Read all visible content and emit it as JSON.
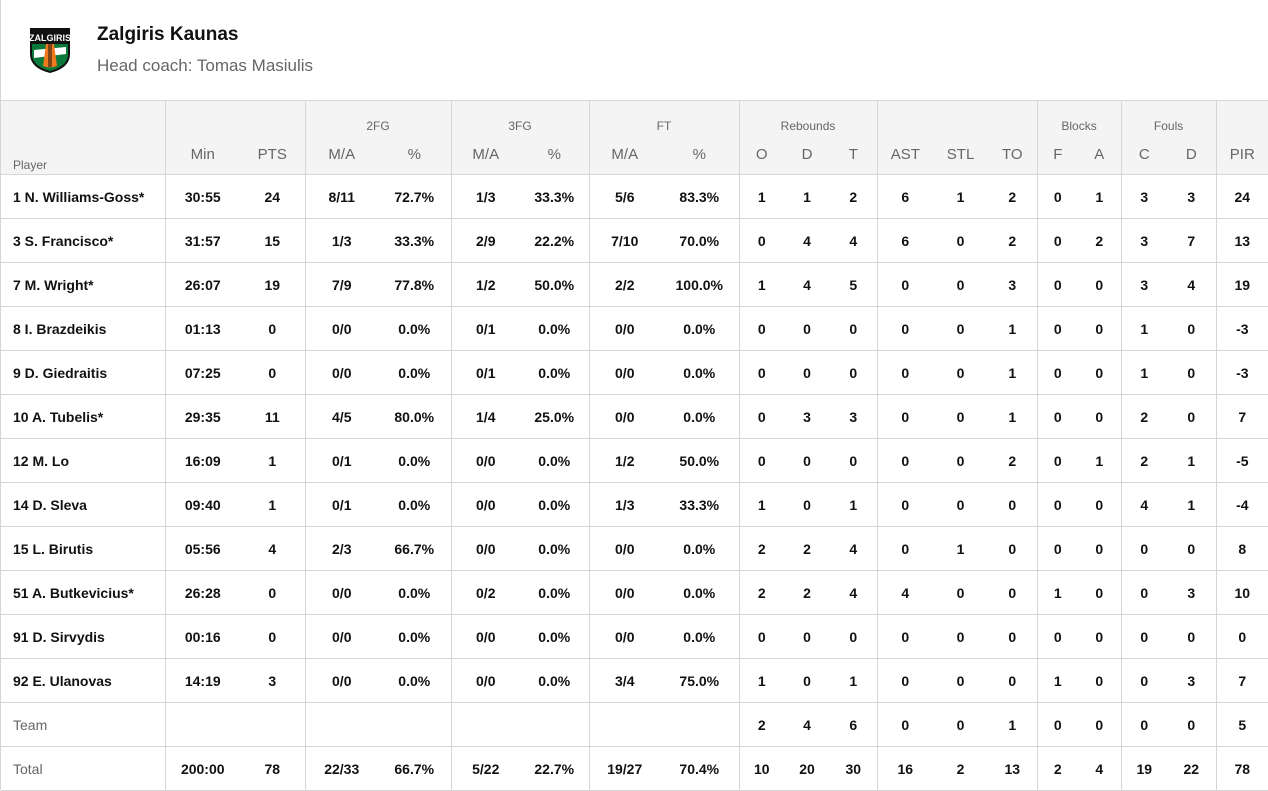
{
  "team": {
    "name": "Zalgiris Kaunas",
    "coach": "Head coach: Tomas Masiulis",
    "logo_text": "ZALGIRIS",
    "colors": {
      "green": "#0a7a3a",
      "orange": "#f07a1e",
      "black": "#111111"
    }
  },
  "groups": [
    "",
    "",
    "2FG",
    "3FG",
    "FT",
    "Rebounds",
    "",
    "Blocks",
    "Fouls",
    ""
  ],
  "columns": [
    "Player",
    "Min",
    "PTS",
    "M/A",
    "%",
    "M/A",
    "%",
    "M/A",
    "%",
    "O",
    "D",
    "T",
    "AST",
    "STL",
    "TO",
    "F",
    "A",
    "C",
    "D",
    "PIR"
  ],
  "rows": [
    [
      "1 N. Williams-Goss*",
      "30:55",
      "24",
      "8/11",
      "72.7%",
      "1/3",
      "33.3%",
      "5/6",
      "83.3%",
      "1",
      "1",
      "2",
      "6",
      "1",
      "2",
      "0",
      "1",
      "3",
      "3",
      "24"
    ],
    [
      "3 S. Francisco*",
      "31:57",
      "15",
      "1/3",
      "33.3%",
      "2/9",
      "22.2%",
      "7/10",
      "70.0%",
      "0",
      "4",
      "4",
      "6",
      "0",
      "2",
      "0",
      "2",
      "3",
      "7",
      "13"
    ],
    [
      "7 M. Wright*",
      "26:07",
      "19",
      "7/9",
      "77.8%",
      "1/2",
      "50.0%",
      "2/2",
      "100.0%",
      "1",
      "4",
      "5",
      "0",
      "0",
      "3",
      "0",
      "0",
      "3",
      "4",
      "19"
    ],
    [
      "8 I. Brazdeikis",
      "01:13",
      "0",
      "0/0",
      "0.0%",
      "0/1",
      "0.0%",
      "0/0",
      "0.0%",
      "0",
      "0",
      "0",
      "0",
      "0",
      "1",
      "0",
      "0",
      "1",
      "0",
      "-3"
    ],
    [
      "9 D. Giedraitis",
      "07:25",
      "0",
      "0/0",
      "0.0%",
      "0/1",
      "0.0%",
      "0/0",
      "0.0%",
      "0",
      "0",
      "0",
      "0",
      "0",
      "1",
      "0",
      "0",
      "1",
      "0",
      "-3"
    ],
    [
      "10 A. Tubelis*",
      "29:35",
      "11",
      "4/5",
      "80.0%",
      "1/4",
      "25.0%",
      "0/0",
      "0.0%",
      "0",
      "3",
      "3",
      "0",
      "0",
      "1",
      "0",
      "0",
      "2",
      "0",
      "7"
    ],
    [
      "12 M. Lo",
      "16:09",
      "1",
      "0/1",
      "0.0%",
      "0/0",
      "0.0%",
      "1/2",
      "50.0%",
      "0",
      "0",
      "0",
      "0",
      "0",
      "2",
      "0",
      "1",
      "2",
      "1",
      "-5"
    ],
    [
      "14 D. Sleva",
      "09:40",
      "1",
      "0/1",
      "0.0%",
      "0/0",
      "0.0%",
      "1/3",
      "33.3%",
      "1",
      "0",
      "1",
      "0",
      "0",
      "0",
      "0",
      "0",
      "4",
      "1",
      "-4"
    ],
    [
      "15 L. Birutis",
      "05:56",
      "4",
      "2/3",
      "66.7%",
      "0/0",
      "0.0%",
      "0/0",
      "0.0%",
      "2",
      "2",
      "4",
      "0",
      "1",
      "0",
      "0",
      "0",
      "0",
      "0",
      "8"
    ],
    [
      "51 A. Butkevicius*",
      "26:28",
      "0",
      "0/0",
      "0.0%",
      "0/2",
      "0.0%",
      "0/0",
      "0.0%",
      "2",
      "2",
      "4",
      "4",
      "0",
      "0",
      "1",
      "0",
      "0",
      "3",
      "10"
    ],
    [
      "91 D. Sirvydis",
      "00:16",
      "0",
      "0/0",
      "0.0%",
      "0/0",
      "0.0%",
      "0/0",
      "0.0%",
      "0",
      "0",
      "0",
      "0",
      "0",
      "0",
      "0",
      "0",
      "0",
      "0",
      "0"
    ],
    [
      "92 E. Ulanovas",
      "14:19",
      "3",
      "0/0",
      "0.0%",
      "0/0",
      "0.0%",
      "3/4",
      "75.0%",
      "1",
      "0",
      "1",
      "0",
      "0",
      "0",
      "1",
      "0",
      "0",
      "3",
      "7"
    ],
    [
      "Team",
      "",
      "",
      "",
      "",
      "",
      "",
      "",
      "",
      "2",
      "4",
      "6",
      "0",
      "0",
      "1",
      "0",
      "0",
      "0",
      "0",
      "5"
    ],
    [
      "Total",
      "200:00",
      "78",
      "22/33",
      "66.7%",
      "5/22",
      "22.7%",
      "19/27",
      "70.4%",
      "10",
      "20",
      "30",
      "16",
      "2",
      "13",
      "2",
      "4",
      "19",
      "22",
      "78"
    ]
  ]
}
